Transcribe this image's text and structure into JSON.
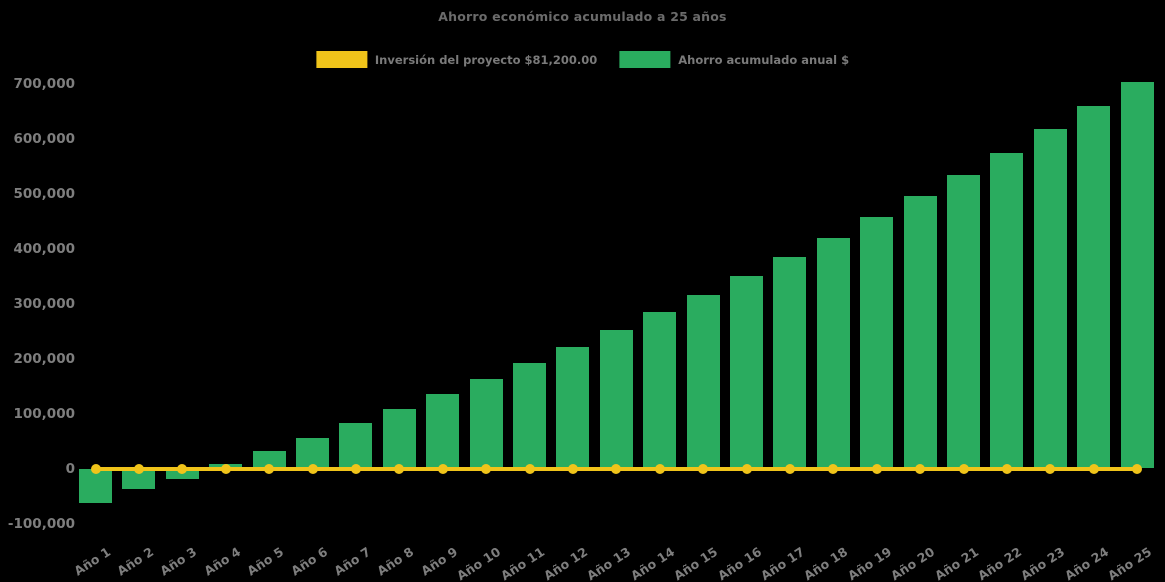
{
  "title": "Ahorro económico acumulado a 25 años",
  "legend": {
    "investment": {
      "label": "Inversión del proyecto $81,200.00",
      "color": "#F0C41A"
    },
    "savings": {
      "label": "Ahorro acumulado anual $",
      "color": "#2AAC5F"
    }
  },
  "chart_data": {
    "type": "bar",
    "title": "Ahorro económico acumulado a 25 años",
    "categories": [
      "Año 1",
      "Año 2",
      "Año 3",
      "Año 4",
      "Año 5",
      "Año 6",
      "Año 7",
      "Año 8",
      "Año 9",
      "Año 10",
      "Año 11",
      "Año 12",
      "Año 13",
      "Año 14",
      "Año 15",
      "Año 16",
      "Año 17",
      "Año 18",
      "Año 19",
      "Año 20",
      "Año 21",
      "Año 22",
      "Año 23",
      "Año 24",
      "Año 25"
    ],
    "series": [
      {
        "name": "Inversión del proyecto $81,200.00",
        "type": "line",
        "color": "#F0C41A",
        "marker": "circle",
        "values": [
          0,
          0,
          0,
          0,
          0,
          0,
          0,
          0,
          0,
          0,
          0,
          0,
          0,
          0,
          0,
          0,
          0,
          0,
          0,
          0,
          0,
          0,
          0,
          0,
          0
        ]
      },
      {
        "name": "Ahorro acumulado anual $",
        "type": "bar",
        "color": "#2AAC5F",
        "values": [
          -62000,
          -38000,
          -19000,
          9000,
          31000,
          56000,
          82000,
          109000,
          135000,
          163000,
          192000,
          221000,
          252000,
          284000,
          316000,
          350000,
          385000,
          420000,
          458000,
          495000,
          534000,
          574000,
          617000,
          659000,
          702000
        ]
      }
    ],
    "xlabel": "",
    "ylabel": "",
    "ylim": [
      -100000,
      700000
    ],
    "ytick_labels": [
      "700,000",
      "600,000",
      "500,000",
      "400,000",
      "300,000",
      "200,000",
      "100,000",
      "0",
      "-100,000"
    ],
    "grid": false,
    "legend_position": "top-center",
    "background": "#000000"
  }
}
